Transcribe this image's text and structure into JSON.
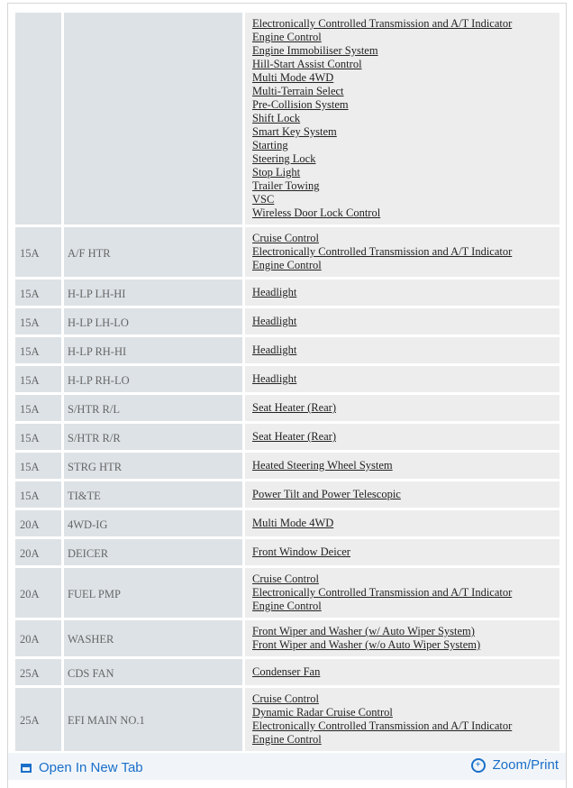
{
  "rows": [
    {
      "amp": "",
      "name": "",
      "components": [
        "Electronically Controlled Transmission and A/T Indicator",
        "Engine Control",
        "Engine Immobiliser System",
        "Hill-Start Assist Control",
        "Multi Mode 4WD",
        "Multi-Terrain Select",
        "Pre-Collision System",
        "Shift Lock",
        "Smart Key System",
        "Starting",
        "Steering Lock",
        "Stop Light",
        "Trailer Towing",
        "VSC",
        "Wireless Door Lock Control"
      ]
    },
    {
      "amp": "15A",
      "name": "A/F HTR",
      "components": [
        "Cruise Control",
        "Electronically Controlled Transmission and A/T Indicator",
        "Engine Control"
      ]
    },
    {
      "amp": "15A",
      "name": "H-LP LH-HI",
      "components": [
        "Headlight"
      ]
    },
    {
      "amp": "15A",
      "name": "H-LP LH-LO",
      "components": [
        "Headlight"
      ]
    },
    {
      "amp": "15A",
      "name": "H-LP RH-HI",
      "components": [
        "Headlight"
      ]
    },
    {
      "amp": "15A",
      "name": "H-LP RH-LO",
      "components": [
        "Headlight"
      ]
    },
    {
      "amp": "15A",
      "name": "S/HTR R/L",
      "components": [
        "Seat Heater (Rear)"
      ]
    },
    {
      "amp": "15A",
      "name": "S/HTR R/R",
      "components": [
        "Seat Heater (Rear)"
      ]
    },
    {
      "amp": "15A",
      "name": "STRG HTR",
      "components": [
        "Heated Steering Wheel System"
      ]
    },
    {
      "amp": "15A",
      "name": "TI&TE",
      "components": [
        "Power Tilt and Power Telescopic"
      ]
    },
    {
      "amp": "20A",
      "name": "4WD-IG",
      "components": [
        "Multi Mode 4WD"
      ]
    },
    {
      "amp": "20A",
      "name": "DEICER",
      "components": [
        "Front Window Deicer"
      ]
    },
    {
      "amp": "20A",
      "name": "FUEL PMP",
      "components": [
        "Cruise Control",
        "Electronically Controlled Transmission and A/T Indicator",
        "Engine Control"
      ]
    },
    {
      "amp": "20A",
      "name": "WASHER",
      "components": [
        "Front Wiper and Washer (w/ Auto Wiper System)",
        "Front Wiper and Washer (w/o Auto Wiper System)"
      ]
    },
    {
      "amp": "25A",
      "name": "CDS FAN",
      "components": [
        "Condenser Fan"
      ]
    },
    {
      "amp": "25A",
      "name": "EFI MAIN NO.1",
      "components": [
        "Cruise Control",
        "Dynamic Radar Cruise Control",
        "Electronically Controlled Transmission and A/T Indicator",
        "Engine Control"
      ]
    }
  ],
  "footer": {
    "open_tab": "Open In New Tab",
    "zoom_print": "Zoom/Print",
    "open_tab_icon": "new-tab-icon",
    "zoom_icon": "zoom-plus-icon"
  },
  "colors": {
    "label_cell": "#dde2e6",
    "component_cell": "#ededed",
    "link": "#1a6fc9"
  }
}
